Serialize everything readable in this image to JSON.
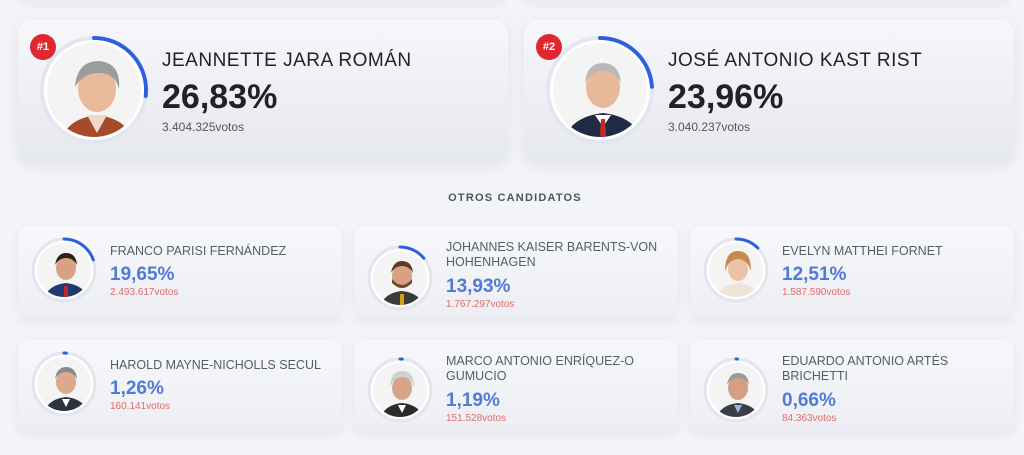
{
  "main_candidates": [
    {
      "rank": "#1",
      "name": "JEANNETTE JARA ROMÁN",
      "pct": "26,83%",
      "votes": "3.404.325votos",
      "pct_value": 26.83
    },
    {
      "rank": "#2",
      "name": "JOSÉ ANTONIO KAST RIST",
      "pct": "23,96%",
      "votes": "3.040.237votos",
      "pct_value": 23.96
    }
  ],
  "others_title": "OTROS CANDIDATOS",
  "other_candidates": [
    {
      "name": "FRANCO PARISI FERNÁNDEZ",
      "pct": "19,65%",
      "votes": "2.493.617votos",
      "pct_value": 19.65
    },
    {
      "name": "JOHANNES KAISER BARENTS-VON HOHENHAGEN",
      "pct": "13,93%",
      "votes": "1.767.297votos",
      "pct_value": 13.93
    },
    {
      "name": "EVELYN MATTHEI FORNET",
      "pct": "12,51%",
      "votes": "1.587.590votos",
      "pct_value": 12.51
    },
    {
      "name": "HAROLD MAYNE-NICHOLLS SECUL",
      "pct": "1,26%",
      "votes": "160.141votos",
      "pct_value": 1.26
    },
    {
      "name": "MARCO ANTONIO ENRÍQUEZ-O GUMUCIO",
      "pct": "1,19%",
      "votes": "151.528votos",
      "pct_value": 1.19
    },
    {
      "name": "EDUARDO ANTONIO ARTÉS BRICHETTI",
      "pct": "0,66%",
      "votes": "84.363votos",
      "pct_value": 0.66
    }
  ],
  "colors": {
    "ring": "#2f5fe0",
    "badge": "#e0262f",
    "pct_small": "#4f7bd6",
    "votes_small": "#e06b6b"
  }
}
